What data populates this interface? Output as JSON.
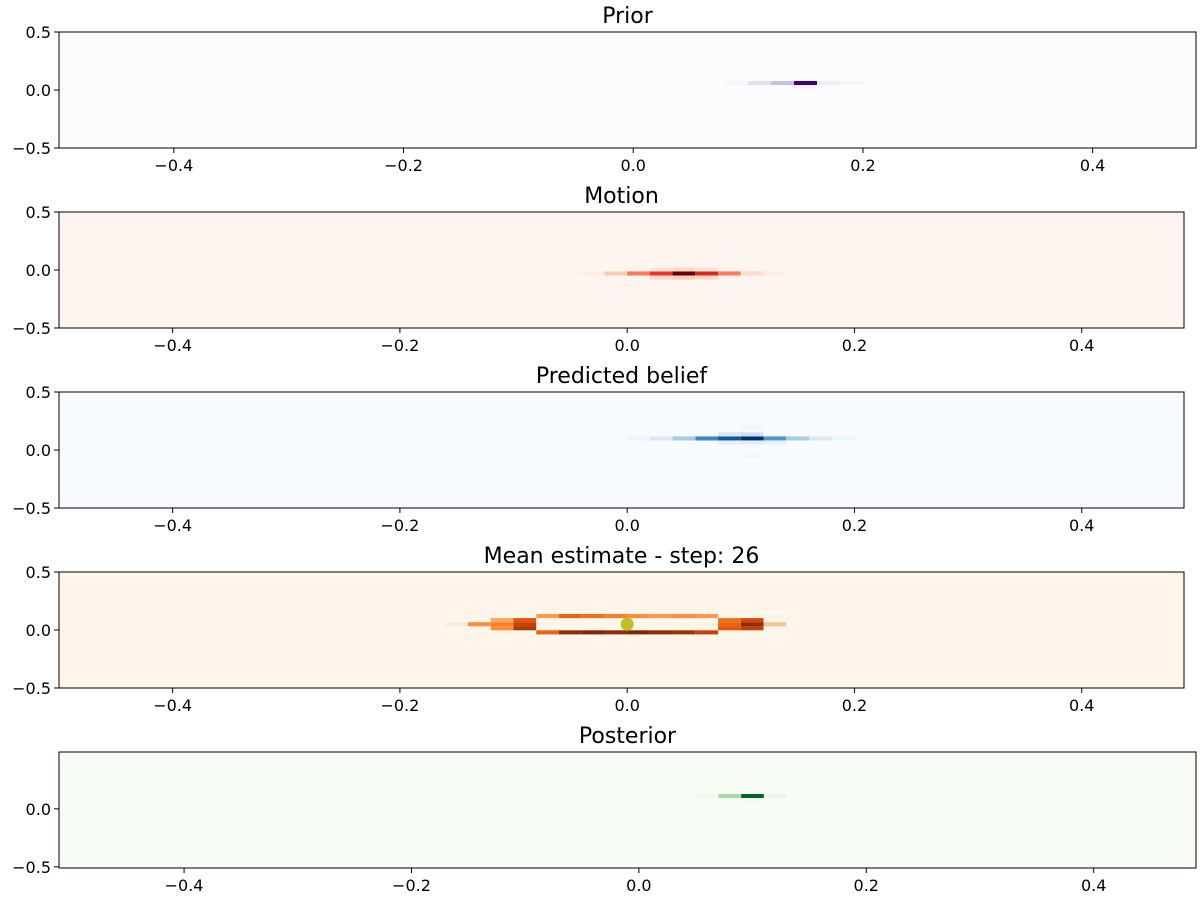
{
  "chart_data": [
    {
      "type": "heatmap",
      "title": "Prior",
      "colormap": "Purples",
      "background_color": "#fcfbfd",
      "xlim": [
        -0.5,
        0.49
      ],
      "ylim": [
        -0.5,
        0.5
      ],
      "xticks": [
        -0.4,
        -0.2,
        0.0,
        0.2,
        0.4
      ],
      "xtick_labels": [
        "−0.4",
        "−0.2",
        "0.0",
        "0.2",
        "0.4"
      ],
      "yticks": [
        -0.5,
        0.0,
        0.5
      ],
      "ytick_labels": [
        "−0.5",
        "0.0",
        "0.5"
      ],
      "cells": [
        {
          "x": 0.09,
          "y": 0.06,
          "value": 0.05
        },
        {
          "x": 0.11,
          "y": 0.06,
          "value": 0.2
        },
        {
          "x": 0.13,
          "y": 0.06,
          "value": 0.35
        },
        {
          "x": 0.15,
          "y": 0.06,
          "value": 1.0
        },
        {
          "x": 0.17,
          "y": 0.06,
          "value": 0.12
        },
        {
          "x": 0.19,
          "y": 0.06,
          "value": 0.06
        },
        {
          "x": 0.15,
          "y": 0.025,
          "value": 0.05
        }
      ]
    },
    {
      "type": "heatmap",
      "title": "Motion",
      "colormap": "Reds",
      "background_color": "#fff5f0",
      "xlim": [
        -0.5,
        0.49
      ],
      "ylim": [
        -0.5,
        0.5
      ],
      "xticks": [
        -0.4,
        -0.2,
        0.0,
        0.2,
        0.4
      ],
      "xtick_labels": [
        "−0.4",
        "−0.2",
        "0.0",
        "0.2",
        "0.4"
      ],
      "yticks": [
        -0.5,
        0.0,
        0.5
      ],
      "ytick_labels": [
        "−0.5",
        "0.0",
        "0.5"
      ],
      "cells": [
        {
          "x": -0.03,
          "y": -0.03,
          "value": 0.05
        },
        {
          "x": -0.01,
          "y": -0.03,
          "value": 0.2
        },
        {
          "x": 0.01,
          "y": -0.03,
          "value": 0.45
        },
        {
          "x": 0.03,
          "y": -0.03,
          "value": 0.65
        },
        {
          "x": 0.05,
          "y": -0.03,
          "value": 1.0
        },
        {
          "x": 0.07,
          "y": -0.03,
          "value": 0.7
        },
        {
          "x": 0.09,
          "y": -0.03,
          "value": 0.45
        },
        {
          "x": 0.11,
          "y": -0.03,
          "value": 0.15
        },
        {
          "x": 0.13,
          "y": -0.03,
          "value": 0.05
        },
        {
          "x": 0.03,
          "y": -0.065,
          "value": 0.15
        },
        {
          "x": 0.05,
          "y": -0.065,
          "value": 0.2
        },
        {
          "x": 0.07,
          "y": -0.065,
          "value": 0.15
        },
        {
          "x": 0.03,
          "y": 0.005,
          "value": 0.1
        },
        {
          "x": 0.05,
          "y": 0.005,
          "value": 0.15
        },
        {
          "x": 0.07,
          "y": 0.005,
          "value": 0.1
        }
      ]
    },
    {
      "type": "heatmap",
      "title": "Predicted belief",
      "colormap": "Blues",
      "background_color": "#f7fbff",
      "xlim": [
        -0.5,
        0.49
      ],
      "ylim": [
        -0.5,
        0.5
      ],
      "xticks": [
        -0.4,
        -0.2,
        0.0,
        0.2,
        0.4
      ],
      "xtick_labels": [
        "−0.4",
        "−0.2",
        "0.0",
        "0.2",
        "0.4"
      ],
      "yticks": [
        -0.5,
        0.0,
        0.5
      ],
      "ytick_labels": [
        "−0.5",
        "0.0",
        "0.5"
      ],
      "cells": [
        {
          "x": 0.01,
          "y": 0.1,
          "value": 0.05
        },
        {
          "x": 0.03,
          "y": 0.1,
          "value": 0.15
        },
        {
          "x": 0.05,
          "y": 0.1,
          "value": 0.35
        },
        {
          "x": 0.07,
          "y": 0.1,
          "value": 0.65
        },
        {
          "x": 0.09,
          "y": 0.1,
          "value": 0.85
        },
        {
          "x": 0.11,
          "y": 0.1,
          "value": 1.0
        },
        {
          "x": 0.13,
          "y": 0.1,
          "value": 0.6
        },
        {
          "x": 0.15,
          "y": 0.1,
          "value": 0.35
        },
        {
          "x": 0.17,
          "y": 0.1,
          "value": 0.15
        },
        {
          "x": 0.19,
          "y": 0.1,
          "value": 0.05
        },
        {
          "x": 0.09,
          "y": 0.135,
          "value": 0.15
        },
        {
          "x": 0.11,
          "y": 0.135,
          "value": 0.2
        },
        {
          "x": 0.09,
          "y": 0.065,
          "value": 0.1
        },
        {
          "x": 0.11,
          "y": 0.065,
          "value": 0.12
        },
        {
          "x": 0.13,
          "y": 0.065,
          "value": 0.08
        },
        {
          "x": 0.11,
          "y": 0.2,
          "value": 0.04
        },
        {
          "x": 0.11,
          "y": -0.05,
          "value": 0.04
        }
      ]
    },
    {
      "type": "heatmap",
      "title": "Mean estimate - step: 26",
      "colormap": "Oranges",
      "background_color": "#fff5eb",
      "xlim": [
        -0.5,
        0.49
      ],
      "ylim": [
        -0.5,
        0.5
      ],
      "xticks": [
        -0.4,
        -0.2,
        0.0,
        0.2,
        0.4
      ],
      "xtick_labels": [
        "−0.4",
        "−0.2",
        "0.0",
        "0.2",
        "0.4"
      ],
      "yticks": [
        -0.5,
        0.0,
        0.5
      ],
      "ytick_labels": [
        "−0.5",
        "0.0",
        "0.5"
      ],
      "cells": [
        {
          "x": -0.15,
          "y": 0.05,
          "value": 0.1
        },
        {
          "x": -0.13,
          "y": 0.05,
          "value": 0.5
        },
        {
          "x": -0.11,
          "y": 0.05,
          "value": 0.55
        },
        {
          "x": -0.09,
          "y": 0.05,
          "value": 0.8
        },
        {
          "x": -0.11,
          "y": 0.015,
          "value": 0.5
        },
        {
          "x": -0.09,
          "y": 0.015,
          "value": 0.85
        },
        {
          "x": -0.11,
          "y": 0.085,
          "value": 0.4
        },
        {
          "x": -0.09,
          "y": 0.085,
          "value": 0.7
        },
        {
          "x": -0.07,
          "y": -0.02,
          "value": 0.65
        },
        {
          "x": -0.05,
          "y": -0.02,
          "value": 0.95
        },
        {
          "x": -0.03,
          "y": -0.02,
          "value": 1.0
        },
        {
          "x": -0.01,
          "y": -0.02,
          "value": 0.95
        },
        {
          "x": 0.01,
          "y": -0.02,
          "value": 1.0
        },
        {
          "x": 0.03,
          "y": -0.02,
          "value": 0.95
        },
        {
          "x": 0.05,
          "y": -0.02,
          "value": 0.9
        },
        {
          "x": 0.07,
          "y": -0.02,
          "value": 0.8
        },
        {
          "x": -0.07,
          "y": 0.12,
          "value": 0.45
        },
        {
          "x": -0.05,
          "y": 0.12,
          "value": 0.65
        },
        {
          "x": -0.03,
          "y": 0.12,
          "value": 0.6
        },
        {
          "x": -0.01,
          "y": 0.12,
          "value": 0.55
        },
        {
          "x": 0.01,
          "y": 0.12,
          "value": 0.5
        },
        {
          "x": 0.03,
          "y": 0.12,
          "value": 0.45
        },
        {
          "x": 0.05,
          "y": 0.12,
          "value": 0.5
        },
        {
          "x": 0.07,
          "y": 0.12,
          "value": 0.45
        },
        {
          "x": 0.09,
          "y": 0.015,
          "value": 0.7
        },
        {
          "x": 0.11,
          "y": 0.015,
          "value": 0.8
        },
        {
          "x": 0.09,
          "y": 0.085,
          "value": 0.6
        },
        {
          "x": 0.11,
          "y": 0.085,
          "value": 0.75
        },
        {
          "x": 0.09,
          "y": 0.05,
          "value": 0.65
        },
        {
          "x": 0.11,
          "y": 0.05,
          "value": 0.95
        },
        {
          "x": 0.13,
          "y": 0.05,
          "value": 0.3
        }
      ],
      "points": [
        {
          "x": 0.0,
          "y": 0.05,
          "color": "#bfbf2a"
        }
      ]
    },
    {
      "type": "heatmap",
      "title": "Posterior",
      "colormap": "Greens",
      "background_color": "#f7fcf5",
      "xlim": [
        -0.51,
        0.49
      ],
      "ylim": [
        -0.51,
        0.49
      ],
      "xticks": [
        -0.4,
        -0.2,
        0.0,
        0.2,
        0.4
      ],
      "xtick_labels": [
        "−0.4",
        "−0.2",
        "0.0",
        "0.2",
        "0.4"
      ],
      "yticks": [
        -0.5,
        0.0
      ],
      "ytick_labels": [
        "−0.5",
        "0.0"
      ],
      "cells": [
        {
          "x": 0.06,
          "y": 0.11,
          "value": 0.05
        },
        {
          "x": 0.08,
          "y": 0.11,
          "value": 0.35
        },
        {
          "x": 0.1,
          "y": 0.11,
          "value": 0.9
        },
        {
          "x": 0.12,
          "y": 0.11,
          "value": 0.1
        },
        {
          "x": 0.1,
          "y": 0.075,
          "value": 0.04
        }
      ]
    }
  ]
}
